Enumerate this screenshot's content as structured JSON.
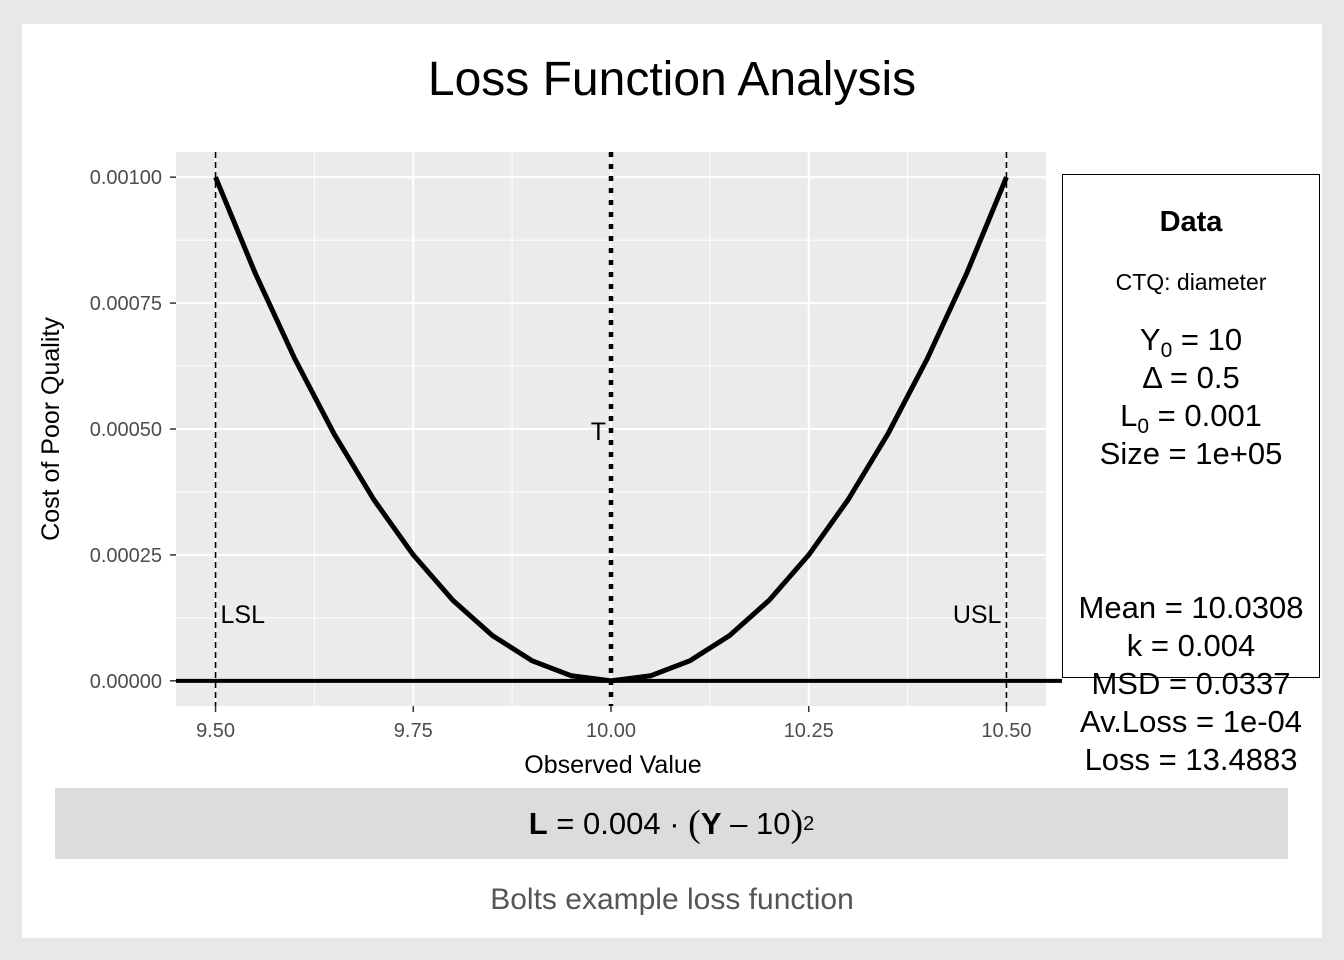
{
  "chart_data": {
    "type": "line",
    "title": "Loss Function Analysis",
    "xlabel": "Observed Value",
    "ylabel": "Cost of Poor Quality",
    "xlim": [
      9.45,
      10.55
    ],
    "ylim": [
      -5e-05,
      0.00105
    ],
    "x_ticks": [
      9.5,
      9.75,
      10.0,
      10.25,
      10.5
    ],
    "x_tick_labels": [
      "9.50",
      "9.75",
      "10.00",
      "10.25",
      "10.50"
    ],
    "y_ticks": [
      0,
      0.00025,
      0.0005,
      0.00075,
      0.001
    ],
    "y_tick_labels": [
      "0.00000",
      "0.00025",
      "0.00050",
      "0.00075",
      "0.00100"
    ],
    "grid": true,
    "series": [
      {
        "x": [
          9.5,
          9.55,
          9.6,
          9.65,
          9.7,
          9.75,
          9.8,
          9.85,
          9.9,
          9.95,
          10.0,
          10.05,
          10.1,
          10.15,
          10.2,
          10.25,
          10.3,
          10.35,
          10.4,
          10.45,
          10.5
        ],
        "y": [
          0.001,
          0.00081,
          0.00064,
          0.00049,
          0.00036,
          0.00025,
          0.00016,
          9e-05,
          4e-05,
          1e-05,
          0,
          1e-05,
          4e-05,
          9e-05,
          0.00016,
          0.00025,
          0.00036,
          0.00049,
          0.00064,
          0.00081,
          0.001
        ]
      }
    ],
    "reference_lines": [
      {
        "label": "LSL",
        "x": 9.5,
        "style": "dashed"
      },
      {
        "label": "T",
        "x": 10.0,
        "style": "dotted"
      },
      {
        "label": "USL",
        "x": 10.5,
        "style": "dashed"
      }
    ],
    "hline": {
      "y": 0
    }
  },
  "data_panel": {
    "heading": "Data",
    "ctq": "CTQ: diameter",
    "y0_label": "Y",
    "y0_sub": "0",
    "y0_value": " = 10",
    "delta": "Δ = 0.5",
    "l0_label": "L",
    "l0_sub": "0",
    "l0_value": " = 0.001",
    "size": "Size = 1e+05",
    "mean": "Mean = 10.0308",
    "k": "k = 0.004",
    "msd": "MSD = 0.0337",
    "avloss": "Av.Loss = 1e-04",
    "loss": "Loss = 13.4883"
  },
  "formula": {
    "L": "L",
    "eq_coef": " = 0.004 · ",
    "open": "(",
    "Y": "Y",
    "minus_target": " – 10",
    "close": ")",
    "exp": "2"
  },
  "caption": "Bolts example loss function"
}
